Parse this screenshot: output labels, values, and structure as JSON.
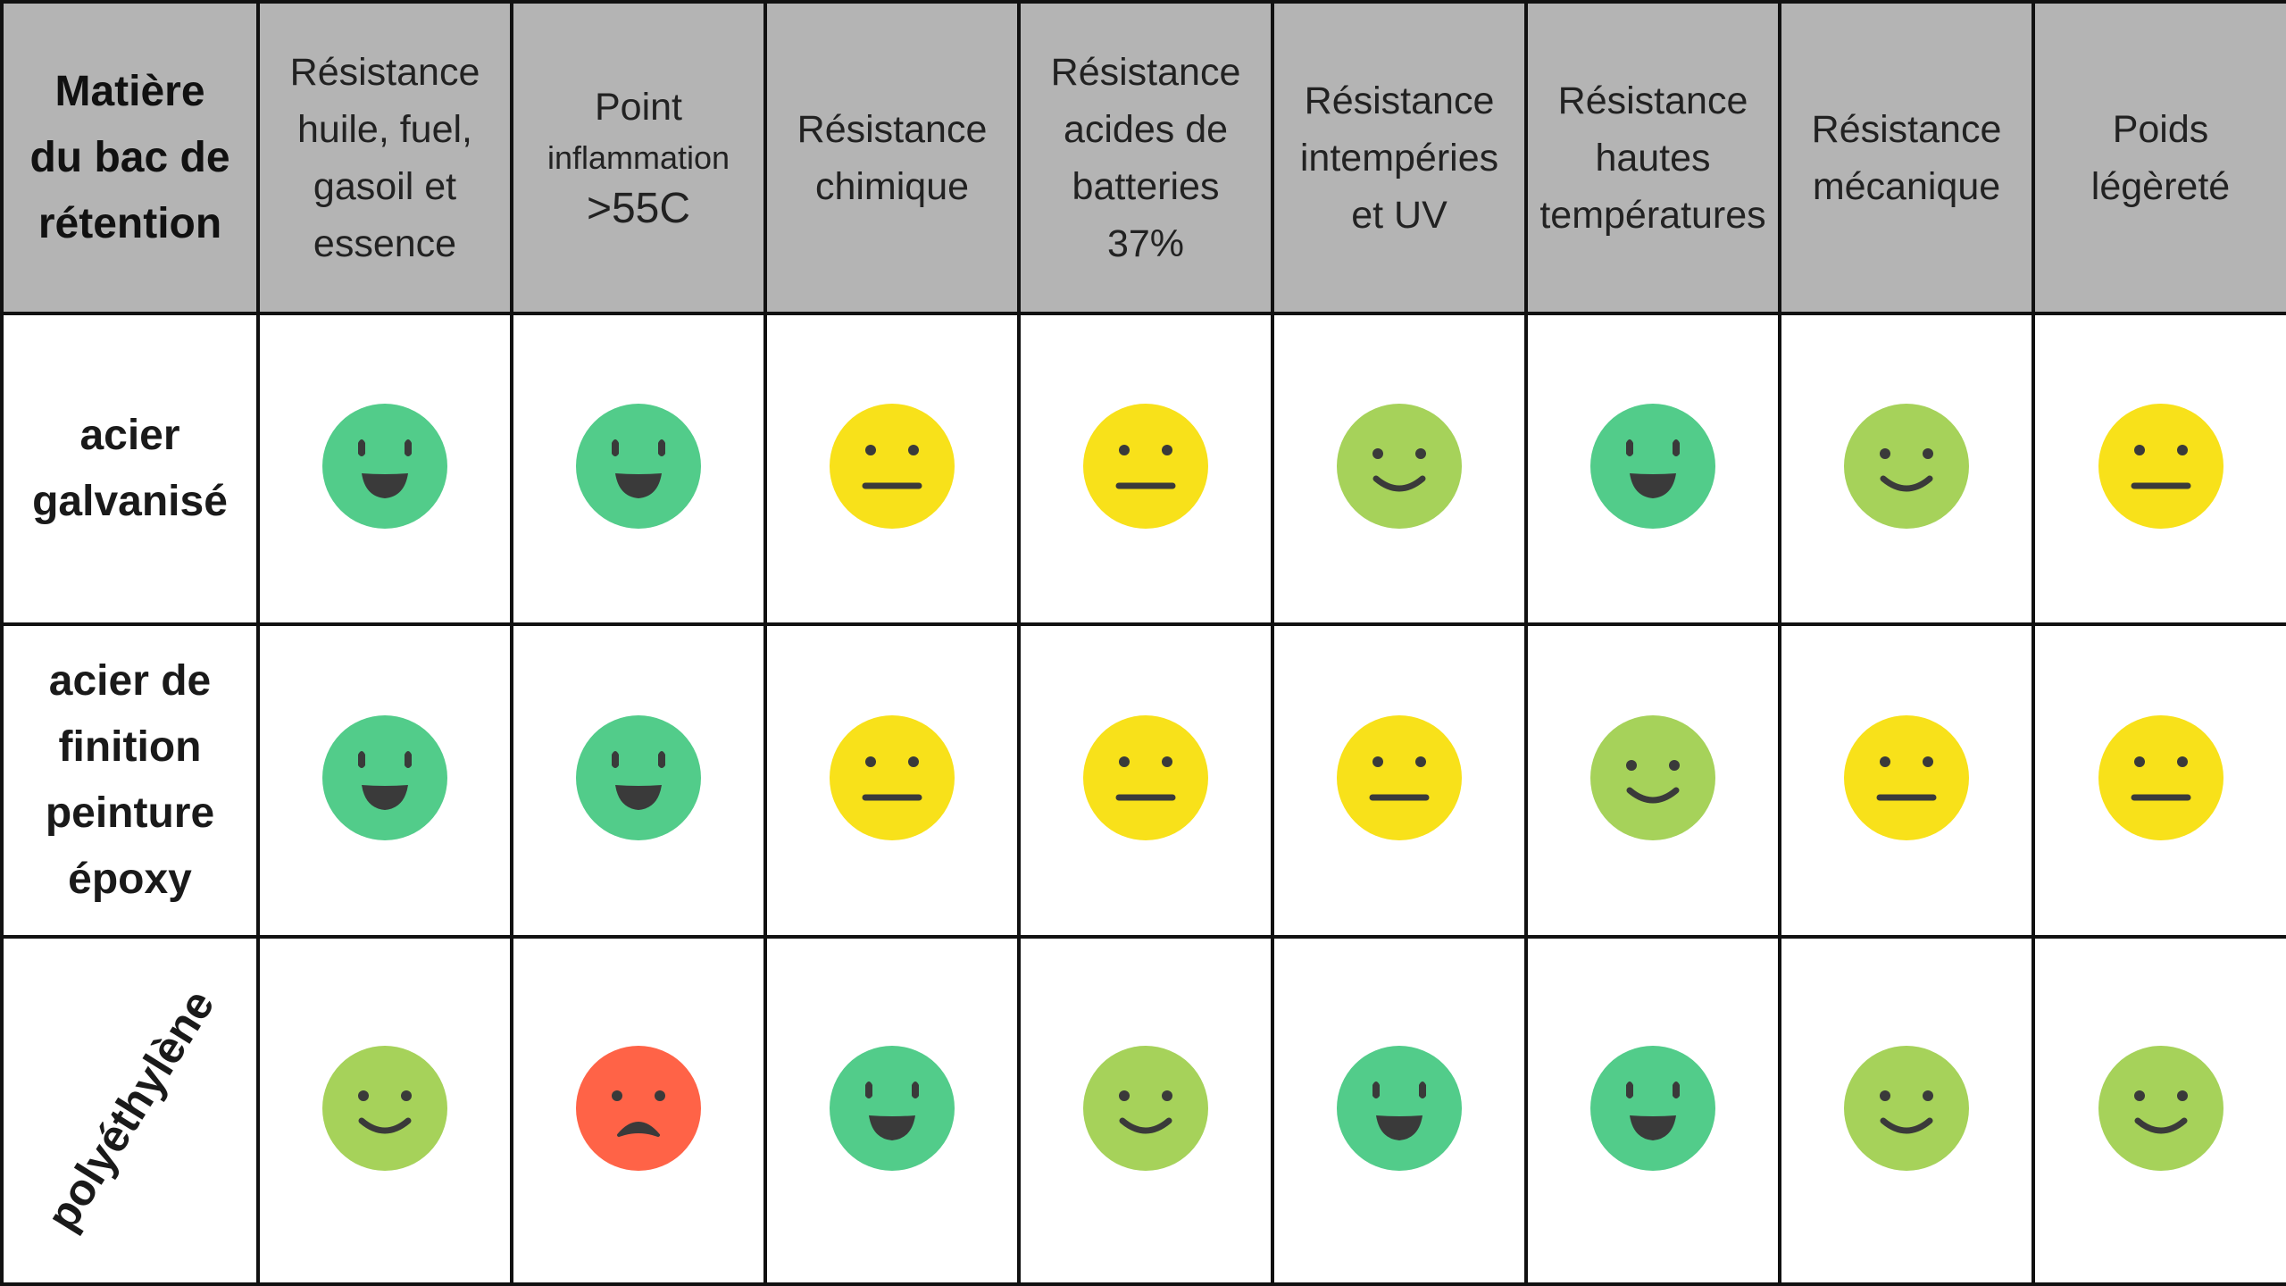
{
  "table": {
    "corner_header": "Matière\ndu bac de\nrétention",
    "columns": [
      {
        "label": "Résistance\nhuile, fuel,\ngasoil et\nessence"
      },
      {
        "label": "Point",
        "sub_label": "inflammation",
        "extra_label": ">55C"
      },
      {
        "label": "Résistance\nchimique"
      },
      {
        "label": "Résistance\nacides de\nbatteries\n37%"
      },
      {
        "label": "Résistance\nintempéries\net UV"
      },
      {
        "label": "Résistance\nhautes\ntempératures"
      },
      {
        "label": "Résistance\nmécanique"
      },
      {
        "label": "Poids\nlégèreté"
      }
    ],
    "rows": [
      {
        "label": "acier\ngalvanisé",
        "ratings": [
          "very-good",
          "very-good",
          "neutral",
          "neutral",
          "good",
          "very-good",
          "good",
          "neutral"
        ]
      },
      {
        "label": "acier de\nfinition\npeinture\népoxy",
        "ratings": [
          "very-good",
          "very-good",
          "neutral",
          "neutral",
          "neutral",
          "good",
          "neutral",
          "neutral"
        ]
      },
      {
        "label": "polyéthylène",
        "rotated": true,
        "ratings": [
          "good",
          "bad",
          "very-good",
          "good",
          "very-good",
          "very-good",
          "good",
          "good"
        ]
      }
    ]
  },
  "rating_styles": {
    "very-good": {
      "icon": "big-smile-face-icon",
      "color": "#52cc8a"
    },
    "good": {
      "icon": "smile-face-icon",
      "color": "#a6d25a"
    },
    "neutral": {
      "icon": "neutral-face-icon",
      "color": "#f8e11a"
    },
    "bad": {
      "icon": "sad-face-icon",
      "color": "#ff6347"
    }
  },
  "colors": {
    "header_background": "#b4b4b4",
    "border": "#111111",
    "face_features": "#3a3a3a"
  }
}
